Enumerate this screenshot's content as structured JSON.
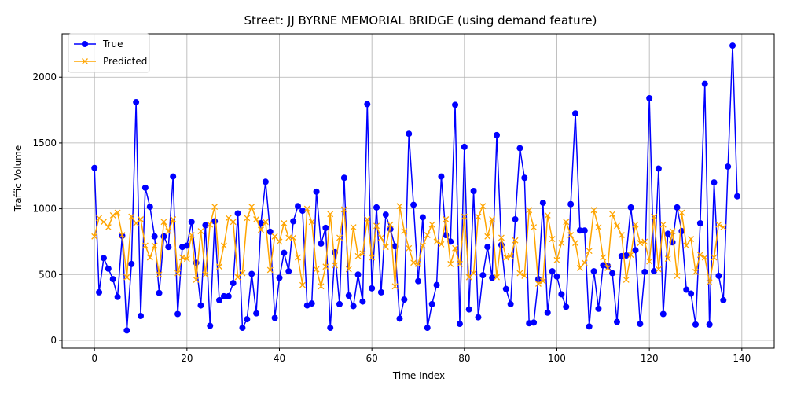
{
  "chart_data": {
    "type": "line",
    "title": "Street: JJ BYRNE MEMORIAL BRIDGE (using demand feature)",
    "xlabel": "Time Index",
    "ylabel": "Traffic Volume",
    "xlim": [
      -7,
      147
    ],
    "ylim": [
      -60,
      2330
    ],
    "xticks": [
      0,
      20,
      40,
      60,
      80,
      100,
      120,
      140
    ],
    "yticks": [
      0,
      500,
      1000,
      1500,
      2000
    ],
    "grid": true,
    "legend_position": "upper-left",
    "series": [
      {
        "name": "True",
        "color": "#0000ff",
        "marker": "circle",
        "values": [
          1310,
          365,
          625,
          545,
          465,
          330,
          795,
          75,
          580,
          1810,
          185,
          1160,
          1015,
          790,
          360,
          790,
          710,
          1245,
          200,
          710,
          720,
          900,
          590,
          265,
          875,
          110,
          905,
          305,
          335,
          335,
          435,
          965,
          95,
          160,
          505,
          205,
          890,
          1205,
          825,
          170,
          475,
          665,
          525,
          905,
          1020,
          985,
          265,
          280,
          1130,
          735,
          855,
          95,
          670,
          275,
          1235,
          340,
          260,
          500,
          295,
          1795,
          395,
          1010,
          365,
          955,
          845,
          715,
          165,
          310,
          1570,
          1030,
          450,
          935,
          95,
          275,
          420,
          1245,
          800,
          750,
          1790,
          125,
          1470,
          235,
          1135,
          175,
          495,
          710,
          475,
          1560,
          725,
          390,
          275,
          920,
          1460,
          1235,
          130,
          135,
          465,
          1045,
          210,
          525,
          485,
          350,
          255,
          1035,
          1725,
          835,
          835,
          105,
          525,
          240,
          570,
          565,
          510,
          140,
          640,
          645,
          1010,
          685,
          125,
          520,
          1840,
          525,
          1305,
          200,
          810,
          745,
          1010,
          830,
          385,
          355,
          120,
          890,
          1950,
          120,
          1200,
          490,
          305,
          1320,
          2240,
          1095
        ]
      },
      {
        "name": "Predicted",
        "color": "#ffa500",
        "marker": "x",
        "values": [
          790,
          930,
          900,
          860,
          950,
          970,
          800,
          480,
          940,
          890,
          920,
          720,
          630,
          720,
          500,
          900,
          830,
          920,
          510,
          630,
          620,
          800,
          460,
          830,
          500,
          880,
          1015,
          560,
          720,
          930,
          900,
          480,
          510,
          930,
          1015,
          920,
          840,
          900,
          535,
          790,
          750,
          890,
          780,
          780,
          630,
          420,
          1000,
          900,
          540,
          410,
          560,
          960,
          570,
          780,
          995,
          540,
          860,
          640,
          660,
          920,
          630,
          870,
          780,
          710,
          880,
          410,
          1020,
          830,
          700,
          590,
          580,
          720,
          800,
          880,
          750,
          730,
          920,
          580,
          700,
          580,
          940,
          480,
          510,
          940,
          1020,
          790,
          920,
          480,
          780,
          630,
          640,
          760,
          510,
          490,
          990,
          860,
          430,
          450,
          950,
          770,
          610,
          740,
          900,
          800,
          740,
          550,
          590,
          680,
          990,
          860,
          630,
          550,
          960,
          870,
          800,
          460,
          650,
          880,
          740,
          750,
          600,
          940,
          540,
          880,
          620,
          830,
          490,
          970,
          720,
          770,
          520,
          650,
          630,
          440,
          630,
          880,
          860
        ]
      }
    ]
  }
}
